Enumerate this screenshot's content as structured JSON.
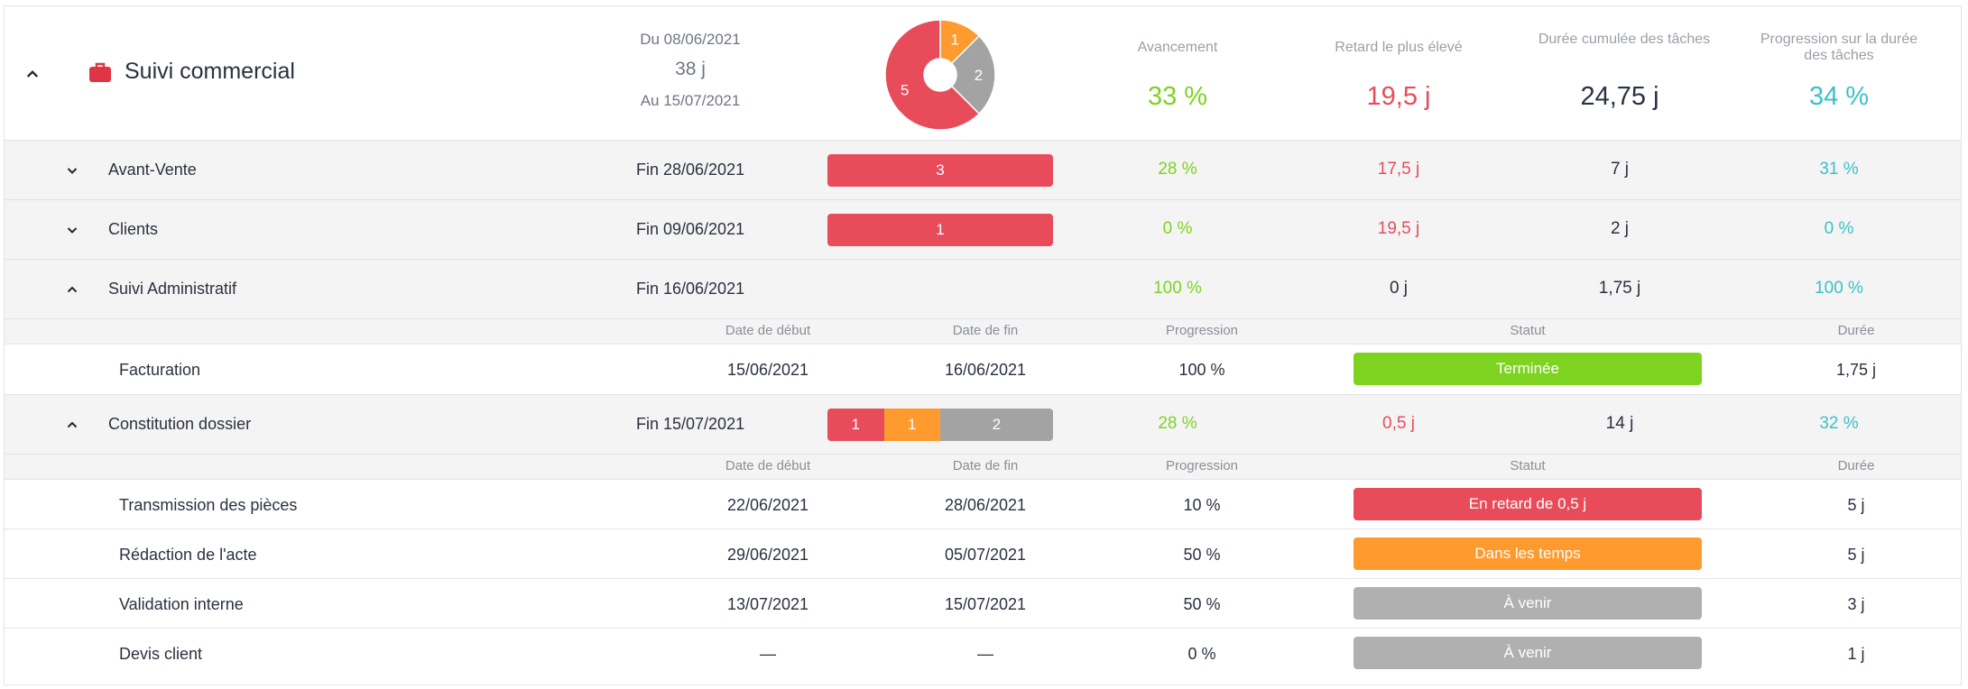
{
  "header": {
    "title": "Suivi commercial",
    "date_start": "Du 08/06/2021",
    "duration": "38 j",
    "date_end": "Au 15/07/2021",
    "pie": [
      {
        "label": "1",
        "value": 1,
        "color": "#fe9a2e"
      },
      {
        "label": "2",
        "value": 2,
        "color": "#a3a3a3"
      },
      {
        "label": "5",
        "value": 5,
        "color": "#e84c5a"
      }
    ],
    "kpis": [
      {
        "label": "Avancement",
        "value": "33 %"
      },
      {
        "label": "Retard le plus élevé",
        "value": "19,5 j"
      },
      {
        "label": "Durée cumulée des tâches",
        "value": "24,75 j"
      },
      {
        "label": "Progression sur la durée des tâches",
        "value": "34 %"
      }
    ]
  },
  "groups": [
    {
      "name": "Avant-Vente",
      "end": "Fin 28/06/2021",
      "bar": [
        {
          "label": "3",
          "value": 3,
          "color": "#e84c5a"
        }
      ],
      "progress": "28 %",
      "delay": "17,5 j",
      "duration": "7 j",
      "duration_progress": "31 %"
    },
    {
      "name": "Clients",
      "end": "Fin 09/06/2021",
      "bar": [
        {
          "label": "1",
          "value": 1,
          "color": "#e84c5a"
        }
      ],
      "progress": "0 %",
      "delay": "19,5 j",
      "duration": "2 j",
      "duration_progress": "0 %"
    },
    {
      "name": "Suivi Administratif",
      "end": "Fin 16/06/2021",
      "progress": "100 %",
      "delay": "0 j",
      "duration": "1,75 j",
      "duration_progress": "100 %"
    },
    {
      "name": "Constitution dossier",
      "end": "Fin 15/07/2021",
      "bar": [
        {
          "label": "1",
          "value": 1,
          "color": "#e84c5a"
        },
        {
          "label": "1",
          "value": 1,
          "color": "#fe9a2e"
        },
        {
          "label": "2",
          "value": 2,
          "color": "#a3a3a3"
        }
      ],
      "progress": "28 %",
      "delay": "0,5 j",
      "duration": "14 j",
      "duration_progress": "32 %"
    }
  ],
  "task_headers": {
    "start": "Date de début",
    "end": "Date de fin",
    "progress": "Progression",
    "status": "Statut",
    "duration": "Durée"
  },
  "tasks_admin": [
    {
      "name": "Facturation",
      "start": "15/06/2021",
      "end": "16/06/2021",
      "progress": "100 %",
      "status": "Terminée",
      "status_color": "#7ed321",
      "duration": "1,75 j"
    }
  ],
  "tasks_dossier": [
    {
      "name": "Transmission des pièces",
      "start": "22/06/2021",
      "end": "28/06/2021",
      "progress": "10 %",
      "status": "En retard de 0,5 j",
      "status_color": "#e84c5a",
      "duration": "5 j"
    },
    {
      "name": "Rédaction de l'acte",
      "start": "29/06/2021",
      "end": "05/07/2021",
      "progress": "50 %",
      "status": "Dans les temps",
      "status_color": "#fe9a2e",
      "duration": "5 j"
    },
    {
      "name": "Validation interne",
      "start": "13/07/2021",
      "end": "15/07/2021",
      "progress": "50 %",
      "status": "À venir",
      "status_color": "#b0b0b0",
      "duration": "3 j"
    },
    {
      "name": "Devis client",
      "start": "—",
      "end": "—",
      "progress": "0 %",
      "status": "À venir",
      "status_color": "#b0b0b0",
      "duration": "1 j"
    }
  ]
}
